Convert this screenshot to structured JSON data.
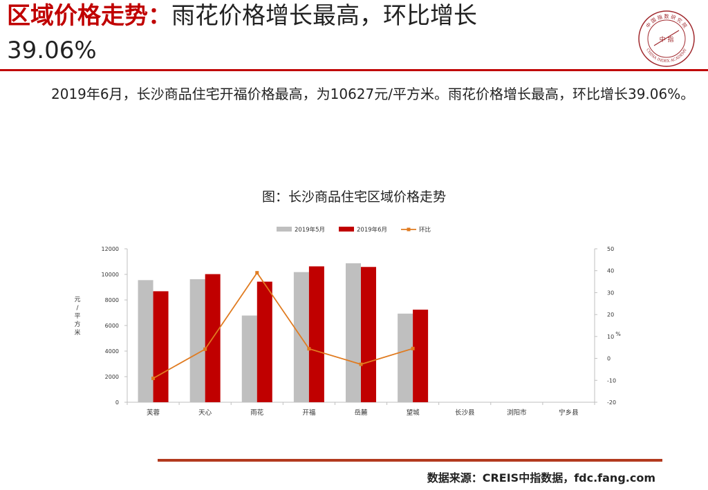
{
  "header": {
    "title_red": "区域价格走势：",
    "title_rest": "雨花价格增长最高，环比增长",
    "title_line2": "39.06%"
  },
  "logo": {
    "top_text": "中 国 指 数 研 究 院",
    "center_text": "中 指",
    "bottom_text": "CHINA INDEX ACADEMY",
    "color": "#a0282d"
  },
  "body_text": "2019年6月，长沙商品住宅开福价格最高，为10627元/平方米。雨花价格增长最高，环比增长39.06%。",
  "chart_title": "图：长沙商品住宅区域价格走势",
  "source": "数据来源：CREIS中指数据，fdc.fang.com",
  "colors": {
    "accent": "#c00000",
    "rule": "#b23a1e"
  },
  "chart_data": {
    "type": "bar",
    "title": "图：长沙商品住宅区域价格走势",
    "categories": [
      "芙蓉",
      "天心",
      "雨花",
      "开福",
      "岳麓",
      "望城",
      "长沙县",
      "浏阳市",
      "宁乡县"
    ],
    "series": [
      {
        "name": "2019年5月",
        "type": "bar",
        "axis": "left",
        "color": "#bfbfbf",
        "values": [
          9550,
          9620,
          6780,
          10180,
          10870,
          6930,
          null,
          null,
          null
        ]
      },
      {
        "name": "2019年6月",
        "type": "bar",
        "axis": "left",
        "color": "#c00000",
        "values": [
          8680,
          10020,
          9430,
          10627,
          10580,
          7240,
          null,
          null,
          null
        ]
      },
      {
        "name": "环比",
        "type": "line",
        "axis": "right",
        "color": "#e07b20",
        "values": [
          -9.1,
          4.2,
          39.06,
          4.4,
          -2.7,
          4.5,
          null,
          null,
          null
        ]
      }
    ],
    "ylabel": "元/平方米",
    "ylim": [
      0,
      12000
    ],
    "yticks": [
      0,
      2000,
      4000,
      6000,
      8000,
      10000,
      12000
    ],
    "y2label": "%",
    "y2lim": [
      -20,
      50
    ],
    "y2ticks": [
      -20,
      -10,
      0,
      10,
      20,
      30,
      40,
      50
    ],
    "grid": false,
    "legend": "top-center"
  }
}
